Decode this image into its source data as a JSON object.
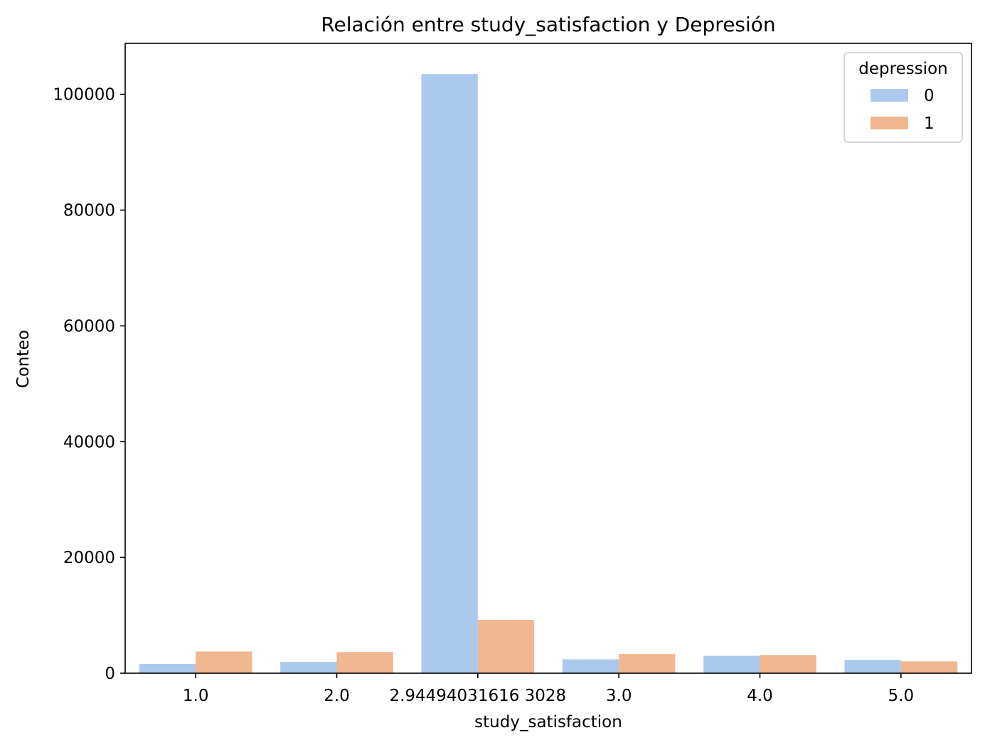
{
  "chart_data": {
    "type": "bar",
    "title": "Relación entre study_satisfaction y Depresión",
    "xlabel": "study_satisfaction",
    "ylabel": "Conteo",
    "categories": [
      "1.0",
      "2.0",
      "2.94494031616 3028",
      "3.0",
      "4.0",
      "5.0"
    ],
    "series": [
      {
        "name": "0",
        "color": "#abc9ed",
        "values": [
          1600,
          1950,
          103500,
          2400,
          3000,
          2300
        ]
      },
      {
        "name": "1",
        "color": "#f0b790",
        "values": [
          3750,
          3650,
          9200,
          3300,
          3150,
          2050
        ]
      }
    ],
    "ylim": [
      0,
      108800
    ],
    "yticks": [
      0,
      20000,
      40000,
      60000,
      80000,
      100000
    ],
    "ytick_labels": [
      "0",
      "20000",
      "40000",
      "60000",
      "80000",
      "100000"
    ],
    "grid": false,
    "legend": {
      "title": "depression",
      "placement": "top-right"
    }
  }
}
